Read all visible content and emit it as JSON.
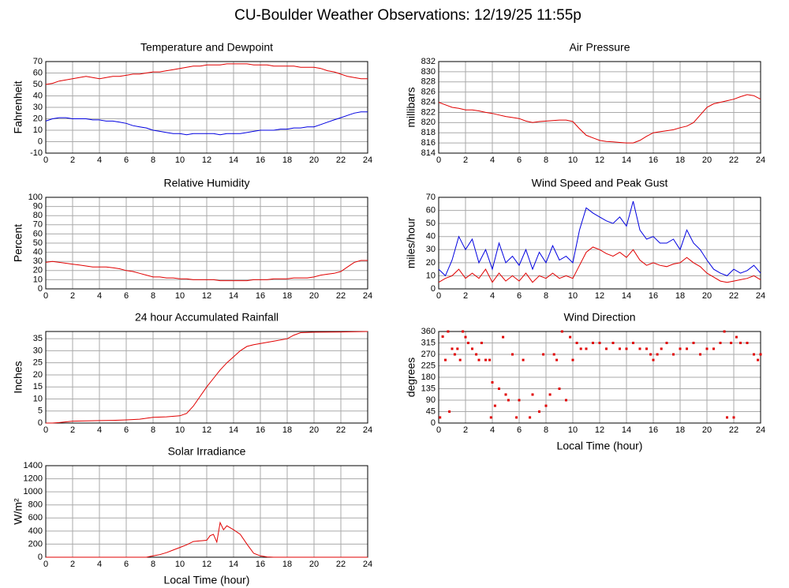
{
  "title": "CU-Boulder Weather Observations: 12/19/25 11:55p",
  "chart_data": [
    {
      "type": "line",
      "title": "Temperature and Dewpoint",
      "ylabel": "Fahrenheit",
      "x": [
        0,
        0.5,
        1,
        1.5,
        2,
        2.5,
        3,
        3.5,
        4,
        4.5,
        5,
        5.5,
        6,
        6.5,
        7,
        7.5,
        8,
        8.5,
        9,
        9.5,
        10,
        10.5,
        11,
        11.5,
        12,
        12.5,
        13,
        13.5,
        14,
        14.5,
        15,
        15.5,
        16,
        16.5,
        17,
        17.5,
        18,
        18.5,
        19,
        19.5,
        20,
        20.5,
        21,
        21.5,
        22,
        22.5,
        23,
        23.5,
        24
      ],
      "series": [
        {
          "color": "#e00000",
          "values": [
            50,
            51,
            53,
            54,
            55,
            56,
            57,
            56,
            55,
            56,
            57,
            57,
            58,
            59,
            59,
            60,
            61,
            61,
            62,
            63,
            64,
            65,
            66,
            66,
            67,
            67,
            67,
            68,
            68,
            68,
            68,
            67,
            67,
            67,
            66,
            66,
            66,
            66,
            65,
            65,
            65,
            64,
            62,
            61,
            59,
            57,
            56,
            55,
            55
          ]
        },
        {
          "color": "#0000e0",
          "values": [
            18,
            20,
            21,
            21,
            20,
            20,
            20,
            19,
            19,
            18,
            18,
            17,
            16,
            14,
            13,
            12,
            10,
            9,
            8,
            7,
            7,
            6,
            7,
            7,
            7,
            7,
            6,
            7,
            7,
            7,
            8,
            9,
            10,
            10,
            10,
            11,
            11,
            12,
            12,
            13,
            13,
            15,
            17,
            19,
            21,
            23,
            25,
            26,
            26
          ]
        }
      ],
      "xlim": [
        0,
        24
      ],
      "xticks": [
        0,
        2,
        4,
        6,
        8,
        10,
        12,
        14,
        16,
        18,
        20,
        22,
        24
      ],
      "ylim": [
        -10,
        70
      ],
      "yticks": [
        -10,
        0,
        10,
        20,
        30,
        40,
        50,
        60,
        70
      ],
      "grid": true
    },
    {
      "type": "line",
      "title": "Air Pressure",
      "ylabel": "millibars",
      "x": [
        0,
        0.5,
        1,
        1.5,
        2,
        2.5,
        3,
        3.5,
        4,
        4.5,
        5,
        5.5,
        6,
        6.5,
        7,
        7.5,
        8,
        8.5,
        9,
        9.5,
        10,
        10.5,
        11,
        11.5,
        12,
        12.5,
        13,
        13.5,
        14,
        14.5,
        15,
        15.5,
        16,
        16.5,
        17,
        17.5,
        18,
        18.5,
        19,
        19.5,
        20,
        20.5,
        21,
        21.5,
        22,
        22.5,
        23,
        23.5,
        24
      ],
      "values": [
        824,
        823.5,
        823,
        822.8,
        822.5,
        822.5,
        822.3,
        822,
        821.8,
        821.5,
        821.2,
        821,
        820.8,
        820.3,
        820,
        820.2,
        820.3,
        820.4,
        820.5,
        820.5,
        820.2,
        818.8,
        817.5,
        817,
        816.5,
        816.3,
        816.2,
        816.1,
        816,
        816,
        816.5,
        817.3,
        818,
        818.2,
        818.4,
        818.6,
        819,
        819.3,
        820,
        821.5,
        823,
        823.7,
        824,
        824.3,
        824.6,
        825.1,
        825.5,
        825.3,
        824.6
      ],
      "color": "#e00000",
      "xlim": [
        0,
        24
      ],
      "xticks": [
        0,
        2,
        4,
        6,
        8,
        10,
        12,
        14,
        16,
        18,
        20,
        22,
        24
      ],
      "ylim": [
        814,
        832
      ],
      "yticks": [
        814,
        816,
        818,
        820,
        822,
        824,
        826,
        828,
        830,
        832
      ],
      "grid": true
    },
    {
      "type": "line",
      "title": "Relative Humidity",
      "ylabel": "Percent",
      "x": [
        0,
        0.5,
        1,
        1.5,
        2,
        2.5,
        3,
        3.5,
        4,
        4.5,
        5,
        5.5,
        6,
        6.5,
        7,
        7.5,
        8,
        8.5,
        9,
        9.5,
        10,
        10.5,
        11,
        11.5,
        12,
        12.5,
        13,
        13.5,
        14,
        14.5,
        15,
        15.5,
        16,
        16.5,
        17,
        17.5,
        18,
        18.5,
        19,
        19.5,
        20,
        20.5,
        21,
        21.5,
        22,
        22.5,
        23,
        23.5,
        24
      ],
      "values": [
        29,
        30,
        29,
        28,
        27,
        26,
        25,
        24,
        24,
        24,
        23,
        22,
        20,
        19,
        17,
        15,
        13,
        13,
        12,
        12,
        11,
        11,
        10,
        10,
        10,
        10,
        9,
        9,
        9,
        9,
        9,
        10,
        10,
        10,
        11,
        11,
        11,
        12,
        12,
        12,
        13,
        15,
        16,
        17,
        19,
        24,
        29,
        31,
        31
      ],
      "color": "#e00000",
      "xlim": [
        0,
        24
      ],
      "xticks": [
        0,
        2,
        4,
        6,
        8,
        10,
        12,
        14,
        16,
        18,
        20,
        22,
        24
      ],
      "ylim": [
        0,
        100
      ],
      "yticks": [
        0,
        10,
        20,
        30,
        40,
        50,
        60,
        70,
        80,
        90,
        100
      ],
      "grid": true
    },
    {
      "type": "line",
      "title": "Wind Speed and Peak Gust",
      "ylabel": "miles/hour",
      "x": [
        0,
        0.5,
        1,
        1.5,
        2,
        2.5,
        3,
        3.5,
        4,
        4.5,
        5,
        5.5,
        6,
        6.5,
        7,
        7.5,
        8,
        8.5,
        9,
        9.5,
        10,
        10.5,
        11,
        11.5,
        12,
        12.5,
        13,
        13.5,
        14,
        14.5,
        15,
        15.5,
        16,
        16.5,
        17,
        17.5,
        18,
        18.5,
        19,
        19.5,
        20,
        20.5,
        21,
        21.5,
        22,
        22.5,
        23,
        23.5,
        24
      ],
      "series": [
        {
          "color": "#0000e0",
          "values": [
            15,
            10,
            22,
            40,
            30,
            38,
            20,
            30,
            15,
            35,
            20,
            25,
            18,
            30,
            15,
            28,
            20,
            33,
            22,
            25,
            20,
            45,
            62,
            58,
            55,
            52,
            50,
            55,
            48,
            67,
            45,
            38,
            40,
            35,
            35,
            38,
            30,
            45,
            35,
            30,
            22,
            15,
            12,
            10,
            15,
            12,
            14,
            18,
            12
          ]
        },
        {
          "color": "#e00000",
          "values": [
            5,
            8,
            10,
            15,
            8,
            12,
            8,
            15,
            5,
            12,
            6,
            10,
            6,
            12,
            5,
            10,
            8,
            12,
            8,
            10,
            8,
            18,
            28,
            32,
            30,
            27,
            25,
            28,
            24,
            30,
            22,
            18,
            20,
            18,
            17,
            19,
            20,
            24,
            20,
            17,
            12,
            9,
            6,
            5,
            6,
            7,
            8,
            10,
            7
          ]
        }
      ],
      "xlim": [
        0,
        24
      ],
      "xticks": [
        0,
        2,
        4,
        6,
        8,
        10,
        12,
        14,
        16,
        18,
        20,
        22,
        24
      ],
      "ylim": [
        0,
        70
      ],
      "yticks": [
        0,
        10,
        20,
        30,
        40,
        50,
        60,
        70
      ],
      "grid": true
    },
    {
      "type": "line",
      "title": "24 hour Accumulated Rainfall",
      "ylabel": "Inches",
      "x": [
        0,
        0.5,
        1,
        1.5,
        2,
        3,
        4,
        5,
        6,
        7,
        8,
        9,
        10,
        10.5,
        11,
        11.5,
        12,
        12.5,
        13,
        13.5,
        14,
        14.5,
        15,
        15.5,
        16,
        17,
        18,
        18.5,
        19,
        20,
        22,
        24
      ],
      "values": [
        0,
        0,
        0.2,
        0.5,
        0.8,
        0.9,
        1,
        1.1,
        1.3,
        1.6,
        2.4,
        2.6,
        3,
        4,
        7,
        11,
        15,
        18.5,
        22,
        25,
        27.5,
        30,
        31.8,
        32.5,
        33,
        34,
        35,
        36.5,
        37.5,
        37.7,
        37.8,
        38
      ],
      "color": "#e00000",
      "xlim": [
        0,
        24
      ],
      "xticks": [
        0,
        2,
        4,
        6,
        8,
        10,
        12,
        14,
        16,
        18,
        20,
        22,
        24
      ],
      "ylim": [
        0,
        38
      ],
      "yticks": [
        0,
        5,
        10,
        15,
        20,
        25,
        30,
        35
      ],
      "grid": true
    },
    {
      "type": "scatter",
      "title": "Wind Direction",
      "ylabel": "degrees",
      "xlabel": "Local Time (hour)",
      "x": [
        0.1,
        0.3,
        0.5,
        0.7,
        0.8,
        1,
        1.2,
        1.4,
        1.6,
        1.8,
        2,
        2.2,
        2.5,
        2.8,
        3,
        3.2,
        3.5,
        3.8,
        3.9,
        4,
        4.2,
        4.5,
        4.8,
        5,
        5.2,
        5.5,
        5.8,
        6,
        6.3,
        6.8,
        7,
        7.5,
        7.8,
        8,
        8.3,
        8.6,
        8.8,
        9,
        9.2,
        9.5,
        9.8,
        10,
        10.3,
        10.6,
        11,
        11.5,
        12,
        12.5,
        13,
        13.5,
        14,
        14.5,
        15,
        15.5,
        15.8,
        16,
        16.3,
        16.6,
        17,
        17.5,
        18,
        18.5,
        19,
        19.5,
        20,
        20.5,
        21,
        21.3,
        21.5,
        21.8,
        22,
        22.2,
        22.5,
        23,
        23.5,
        23.8,
        24
      ],
      "values": [
        22,
        340,
        248,
        360,
        45,
        292,
        270,
        292,
        248,
        360,
        338,
        315,
        292,
        270,
        248,
        315,
        248,
        248,
        22,
        160,
        68,
        135,
        338,
        112,
        90,
        270,
        22,
        90,
        248,
        22,
        112,
        45,
        270,
        68,
        112,
        270,
        248,
        135,
        360,
        90,
        338,
        248,
        315,
        292,
        292,
        315,
        315,
        292,
        315,
        292,
        292,
        315,
        292,
        292,
        270,
        248,
        270,
        292,
        315,
        270,
        292,
        292,
        315,
        270,
        292,
        292,
        315,
        360,
        22,
        315,
        22,
        338,
        315,
        315,
        270,
        248,
        270
      ],
      "color": "#e00000",
      "xlim": [
        0,
        24
      ],
      "xticks": [
        0,
        2,
        4,
        6,
        8,
        10,
        12,
        14,
        16,
        18,
        20,
        22,
        24
      ],
      "ylim": [
        0,
        360
      ],
      "yticks": [
        0,
        45,
        90,
        135,
        180,
        225,
        270,
        315,
        360
      ],
      "grid": true
    },
    {
      "type": "line",
      "title": "Solar Irradiance",
      "ylabel": "W/m²",
      "xlabel": "Local Time (hour)",
      "x": [
        0,
        2,
        4,
        6,
        7,
        7.5,
        8,
        8.5,
        9,
        9.5,
        10,
        10.5,
        11,
        11.5,
        12,
        12.25,
        12.5,
        12.75,
        13,
        13.25,
        13.5,
        14,
        14.5,
        15,
        15.5,
        16,
        16.5,
        17,
        18,
        20,
        22,
        24
      ],
      "values": [
        0,
        0,
        0,
        0,
        0,
        0,
        20,
        40,
        70,
        110,
        150,
        190,
        240,
        250,
        260,
        330,
        350,
        230,
        530,
        420,
        480,
        420,
        350,
        200,
        60,
        20,
        5,
        0,
        0,
        0,
        0,
        0
      ],
      "color": "#e00000",
      "xlim": [
        0,
        24
      ],
      "xticks": [
        0,
        2,
        4,
        6,
        8,
        10,
        12,
        14,
        16,
        18,
        20,
        22,
        24
      ],
      "ylim": [
        0,
        1400
      ],
      "yticks": [
        0,
        200,
        400,
        600,
        800,
        1000,
        1200,
        1400
      ],
      "grid": true
    }
  ]
}
